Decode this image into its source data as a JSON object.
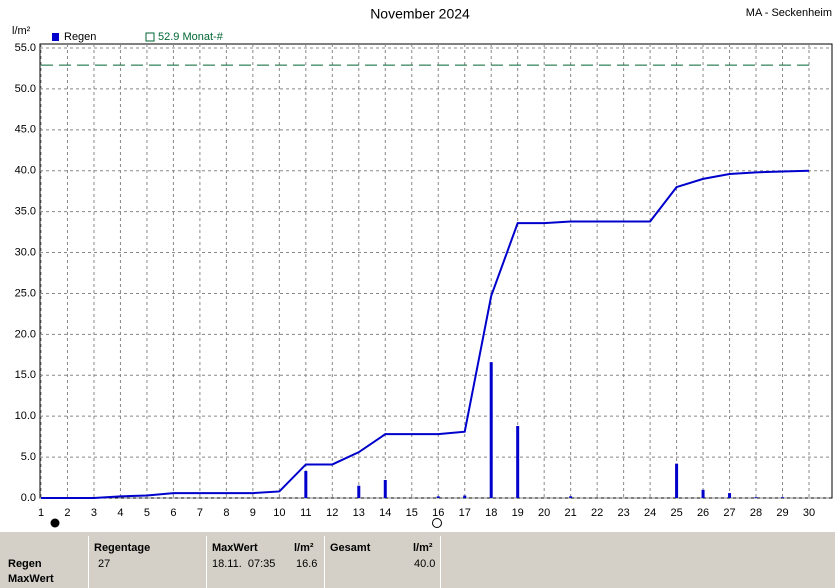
{
  "chart_data": {
    "type": "bar",
    "title": "November 2024",
    "station": "MA - Seckenheim",
    "ylabel": "l/m²",
    "xlim": [
      1,
      30
    ],
    "xticks": [
      1,
      2,
      3,
      4,
      5,
      6,
      7,
      8,
      9,
      10,
      11,
      12,
      13,
      14,
      15,
      16,
      17,
      18,
      19,
      20,
      21,
      22,
      23,
      24,
      25,
      26,
      27,
      28,
      29,
      30
    ],
    "ylim": [
      0,
      55
    ],
    "yticks": [
      {
        "value": 0,
        "label": "0.0"
      },
      {
        "value": 5,
        "label": "5.0"
      },
      {
        "value": 10,
        "label": "10.0"
      },
      {
        "value": 15,
        "label": "15.0"
      },
      {
        "value": 20,
        "label": "20.0"
      },
      {
        "value": 25,
        "label": "25.0"
      },
      {
        "value": 30,
        "label": "30.0"
      },
      {
        "value": 35,
        "label": "35.0"
      },
      {
        "value": 40,
        "label": "40.0"
      },
      {
        "value": 45,
        "label": "45.0"
      },
      {
        "value": 50,
        "label": "50.0"
      },
      {
        "value": 55,
        "label": "55.0"
      }
    ],
    "grid": true,
    "series": [
      {
        "name": "Regen",
        "type": "bar",
        "color": "#0000cc",
        "x": [
          1.5,
          11,
          13,
          14,
          16,
          17,
          18,
          19,
          21,
          25,
          26,
          27,
          28,
          29
        ],
        "values": [
          0.1,
          3.3,
          1.5,
          2.2,
          0.2,
          0.3,
          16.6,
          8.8,
          0.2,
          4.2,
          1.0,
          0.6,
          0.1,
          0.1
        ]
      },
      {
        "type": "line",
        "color": "#0000cc",
        "x": [
          1,
          2,
          3,
          4,
          5,
          6,
          7,
          8,
          9,
          10,
          11,
          12,
          13,
          14,
          15,
          16,
          17,
          18,
          19,
          20,
          21,
          22,
          23,
          24,
          25,
          26,
          27,
          28,
          29,
          30
        ],
        "values": [
          0,
          0,
          0,
          0.2,
          0.3,
          0.6,
          0.6,
          0.6,
          0.6,
          0.8,
          4.1,
          4.1,
          5.6,
          7.8,
          7.8,
          7.8,
          8.1,
          24.7,
          33.6,
          33.6,
          33.8,
          33.8,
          33.8,
          33.8,
          38.0,
          39.0,
          39.6,
          39.8,
          39.9,
          40.0
        ]
      }
    ],
    "threshold": {
      "value": 52.9,
      "label": "52.9 Monat-#",
      "color": "#006633"
    }
  },
  "table": {
    "row_labels": [
      "Regen",
      "MaxWert"
    ],
    "headers": [
      "Regentage",
      "MaxWert",
      "l/m²",
      "Gesamt",
      "l/m²"
    ],
    "values": [
      "27",
      "18.11.  07:35",
      "16.6",
      "",
      "40.0"
    ]
  }
}
